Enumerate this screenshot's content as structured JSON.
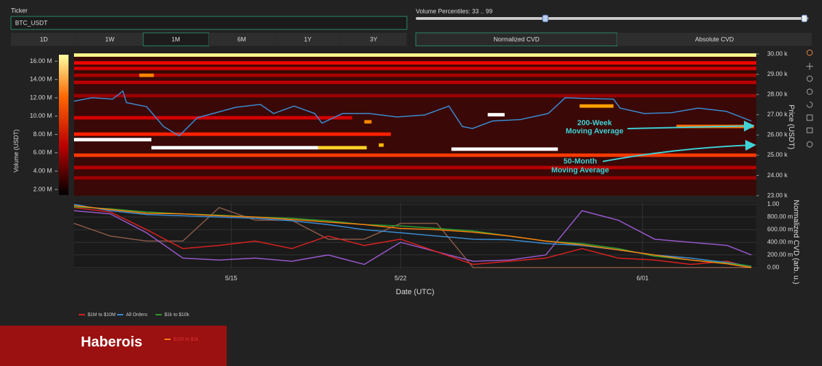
{
  "controls": {
    "ticker_label": "Ticker",
    "ticker_value": "BTC_USDT",
    "timeframes": [
      "1D",
      "1W",
      "1M",
      "6M",
      "1Y",
      "3Y"
    ],
    "active_timeframe_index": 2,
    "percentile_label": "Volume Percentiles: 33 .. 99",
    "percentiles": [
      33,
      99
    ],
    "percentile_range": [
      0,
      100
    ],
    "cvd_modes": [
      "Normalized CVD",
      "Absolute CVD"
    ]
  },
  "chart_data": [
    {
      "type": "heatmap",
      "colorbar_title": "Volume (USDT)",
      "colorbar_lim": [
        1400000,
        16700000
      ],
      "colorbar_ticks": [
        {
          "value": 2000000,
          "label": "2.00 M"
        },
        {
          "value": 4000000,
          "label": "4.00 M"
        },
        {
          "value": 6000000,
          "label": "6.00 M"
        },
        {
          "value": 8000000,
          "label": "8.00 M"
        },
        {
          "value": 10000000,
          "label": "10.00 M"
        },
        {
          "value": 12000000,
          "label": "12.00 M"
        },
        {
          "value": 14000000,
          "label": "14.00 M"
        },
        {
          "value": 16000000,
          "label": "16.00 M"
        }
      ],
      "y_label": "Price (USDT)",
      "xlim": [
        8.5,
        36.7
      ],
      "ylim": [
        23000,
        30000
      ],
      "yticks": [
        {
          "value": 23000,
          "label": "23.00 k"
        },
        {
          "value": 24000,
          "label": "24.00 k"
        },
        {
          "value": 25000,
          "label": "25.00 k"
        },
        {
          "value": 26000,
          "label": "26.00 k"
        },
        {
          "value": 27000,
          "label": "27.00 k"
        },
        {
          "value": 28000,
          "label": "28.00 k"
        },
        {
          "value": 29000,
          "label": "29.00 k"
        },
        {
          "value": 30000,
          "label": "30.00 k"
        }
      ],
      "bands": [
        {
          "x": [
            8.5,
            36.7
          ],
          "price": 29950,
          "volume": 16400000
        },
        {
          "x": [
            8.5,
            36.7
          ],
          "price": 29560,
          "volume": 7000000
        },
        {
          "x": [
            8.5,
            36.7
          ],
          "price": 29290,
          "volume": 6000000
        },
        {
          "x": [
            8.5,
            36.7
          ],
          "price": 28950,
          "volume": 4500000
        },
        {
          "x": [
            11.2,
            11.8
          ],
          "price": 28950,
          "volume": 12000000
        },
        {
          "x": [
            8.5,
            36.7
          ],
          "price": 28600,
          "volume": 5000000
        },
        {
          "x": [
            8.5,
            36.7
          ],
          "price": 27940,
          "volume": 4000000
        },
        {
          "x": [
            8.5,
            20.0
          ],
          "price": 26850,
          "volume": 6000000
        },
        {
          "x": [
            8.5,
            21.6
          ],
          "price": 26040,
          "volume": 8000000
        },
        {
          "x": [
            8.5,
            11.7
          ],
          "price": 25770,
          "volume": 17000000
        },
        {
          "x": [
            11.7,
            18.6
          ],
          "price": 25370,
          "volume": 17000000
        },
        {
          "x": [
            18.6,
            20.6
          ],
          "price": 25370,
          "volume": 15000000
        },
        {
          "x": [
            21.1,
            21.3
          ],
          "price": 25500,
          "volume": 14000000
        },
        {
          "x": [
            24.1,
            28.5
          ],
          "price": 25300,
          "volume": 17000000
        },
        {
          "x": [
            8.5,
            36.7
          ],
          "price": 25000,
          "volume": 9000000
        },
        {
          "x": [
            8.5,
            36.7
          ],
          "price": 24390,
          "volume": 5000000
        },
        {
          "x": [
            8.5,
            36.7
          ],
          "price": 23880,
          "volume": 4000000
        },
        {
          "x": [
            29.4,
            30.8
          ],
          "price": 27430,
          "volume": 13000000
        },
        {
          "x": [
            25.6,
            26.3
          ],
          "price": 27000,
          "volume": 17000000
        },
        {
          "x": [
            33.4,
            36.6
          ],
          "price": 26420,
          "volume": 11000000
        },
        {
          "x": [
            20.5,
            20.8
          ],
          "price": 26650,
          "volume": 12000000
        }
      ],
      "series": [
        {
          "color": "#3a8fd8",
          "x": [
            8.5,
            9.25,
            10.1,
            10.52,
            10.67,
            11.5,
            12.2,
            12.85,
            13.6,
            15.2,
            16.2,
            16.75,
            17.6,
            18.45,
            18.75,
            19.6,
            20.7,
            21.85,
            23.0,
            24.0,
            24.55,
            24.97,
            25.8,
            26.95,
            28.1,
            28.5,
            28.8,
            29.8,
            30.8,
            31.07,
            32.06,
            33.2,
            34.3,
            35.46,
            36.5
          ],
          "values": [
            27670,
            27840,
            27770,
            28170,
            27600,
            27400,
            26420,
            25960,
            26850,
            27370,
            27510,
            27060,
            27430,
            27060,
            26580,
            27060,
            27060,
            26890,
            26990,
            27430,
            26420,
            26320,
            26690,
            26760,
            27060,
            27500,
            27840,
            27800,
            27770,
            27330,
            27060,
            27100,
            27330,
            27170,
            26690
          ]
        }
      ],
      "annotations": [
        {
          "lines": [
            "200-Week",
            "Moving Average"
          ]
        },
        {
          "lines": [
            "50-Month",
            "Moving Average"
          ]
        }
      ]
    },
    {
      "type": "line",
      "x_label": "Date (UTC)",
      "y_label": "Normalized CVD (arb. u.)",
      "xlim": [
        8.5,
        36.7
      ],
      "xticks": [
        {
          "value": 15,
          "label": "5/15"
        },
        {
          "value": 22,
          "label": "5/22"
        },
        {
          "value": 32,
          "label": "6/01"
        }
      ],
      "ylim": [
        -0.02,
        1.03
      ],
      "yticks": [
        {
          "value": 0,
          "label": "0.00"
        },
        {
          "value": 0.2,
          "label": "200.00 m"
        },
        {
          "value": 0.4,
          "label": "400.00 m"
        },
        {
          "value": 0.6,
          "label": "600.00 m"
        },
        {
          "value": 0.8,
          "label": "800.00 m"
        },
        {
          "value": 1,
          "label": "1.00"
        }
      ],
      "grid": true,
      "x": [
        8.5,
        10,
        11.5,
        13,
        14.5,
        16,
        17.5,
        19,
        20.5,
        22,
        23.5,
        25,
        26.5,
        28,
        29.5,
        31,
        32.5,
        34,
        35.5,
        36.5
      ],
      "series": [
        {
          "color": "#8a5a4a",
          "values": [
            0.7,
            0.5,
            0.42,
            0.42,
            0.95,
            0.75,
            0.75,
            0.45,
            0.45,
            0.7,
            0.7,
            0,
            0,
            0,
            0,
            0,
            0,
            0,
            0,
            0
          ]
        },
        {
          "color": "#9b59d0",
          "values": [
            0.9,
            0.85,
            0.55,
            0.15,
            0.12,
            0.15,
            0.1,
            0.2,
            0.05,
            0.4,
            0.25,
            0.1,
            0.12,
            0.2,
            0.9,
            0.75,
            0.45,
            0.4,
            0.35,
            0.2
          ]
        },
        {
          "name": "$1M to $10M",
          "color": "#e02020",
          "values": [
            0.95,
            0.88,
            0.6,
            0.3,
            0.35,
            0.42,
            0.3,
            0.5,
            0.35,
            0.45,
            0.25,
            0.05,
            0.1,
            0.15,
            0.3,
            0.15,
            0.12,
            0.05,
            0.1,
            0
          ]
        },
        {
          "name": "All Orders",
          "color": "#3a8fd8",
          "values": [
            1,
            0.9,
            0.84,
            0.82,
            0.8,
            0.78,
            0.74,
            0.68,
            0.6,
            0.55,
            0.5,
            0.45,
            0.44,
            0.38,
            0.35,
            0.28,
            0.2,
            0.15,
            0.08,
            0.02
          ]
        },
        {
          "name": "$1k to $10k",
          "color": "#2ca02c",
          "values": [
            0.96,
            0.93,
            0.88,
            0.85,
            0.83,
            0.8,
            0.78,
            0.74,
            0.68,
            0.66,
            0.62,
            0.58,
            0.5,
            0.42,
            0.38,
            0.3,
            0.18,
            0.12,
            0.07,
            0.02
          ]
        },
        {
          "name": "$100 to $1k",
          "color": "#ff7f0e",
          "values": [
            0.98,
            0.92,
            0.86,
            0.85,
            0.82,
            0.8,
            0.76,
            0.72,
            0.68,
            0.62,
            0.6,
            0.56,
            0.5,
            0.42,
            0.36,
            0.28,
            0.2,
            0.12,
            0.06,
            0
          ]
        }
      ]
    }
  ],
  "watermark": "Haberois"
}
